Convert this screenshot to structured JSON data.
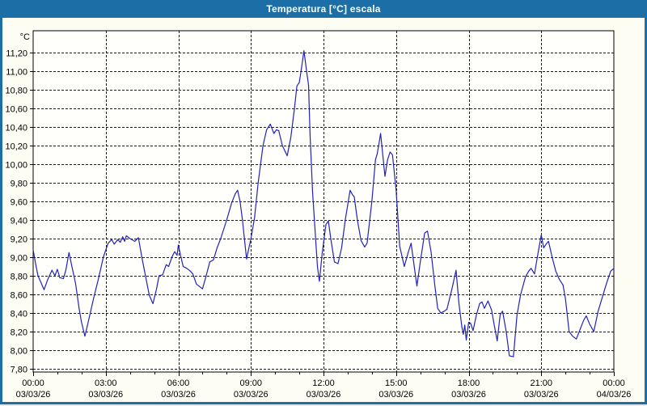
{
  "window": {
    "title": "Temperatura [°C] escala"
  },
  "colors": {
    "titlebar": "#1c6fa6",
    "window_border": "#1c6fa6",
    "background": "#fdfdf4",
    "plot_background": "#fffffc",
    "line": "#2222bb",
    "grid": "#1a1a1a",
    "frame": "#000000",
    "text": "#000000"
  },
  "chart_data": {
    "type": "line",
    "title": "Temperatura [°C] escala",
    "ylabel": "°C",
    "unit_label": "°C",
    "ylim": [
      7.8,
      11.2
    ],
    "ytick_step": 0.2,
    "ytick_labels": [
      "11,20",
      "11,00",
      "10,80",
      "10,60",
      "10,40",
      "10,20",
      "10,00",
      "9,80",
      "9,60",
      "9,40",
      "9,20",
      "9,00",
      "8,80",
      "8,60",
      "8,40",
      "8,20",
      "8,00",
      "7,80"
    ],
    "x_hours_range": [
      0,
      24
    ],
    "x_minor_tick_hours": 1,
    "grid": true,
    "legend": "none",
    "xtick_labels": [
      {
        "hour": 0,
        "time": "00:00",
        "date": "03/03/26"
      },
      {
        "hour": 3,
        "time": "03:00",
        "date": "03/03/26"
      },
      {
        "hour": 6,
        "time": "06:00",
        "date": "03/03/26"
      },
      {
        "hour": 9,
        "time": "09:00",
        "date": "03/03/26"
      },
      {
        "hour": 12,
        "time": "12:00",
        "date": "03/03/26"
      },
      {
        "hour": 15,
        "time": "15:00",
        "date": "03/03/26"
      },
      {
        "hour": 18,
        "time": "18:00",
        "date": "03/03/26"
      },
      {
        "hour": 21,
        "time": "21:00",
        "date": "03/03/26"
      },
      {
        "hour": 24,
        "time": "00:00",
        "date": "04/03/26"
      }
    ],
    "series": [
      {
        "name": "Temperatura",
        "color": "#2222bb",
        "points": [
          [
            0,
            9.08
          ],
          [
            0.1,
            8.93
          ],
          [
            0.2,
            8.8
          ],
          [
            0.3,
            8.74
          ],
          [
            0.45,
            8.65
          ],
          [
            0.6,
            8.76
          ],
          [
            0.78,
            8.86
          ],
          [
            0.9,
            8.8
          ],
          [
            1,
            8.87
          ],
          [
            1.1,
            8.78
          ],
          [
            1.25,
            8.77
          ],
          [
            1.35,
            8.86
          ],
          [
            1.48,
            9.05
          ],
          [
            1.6,
            8.9
          ],
          [
            1.75,
            8.72
          ],
          [
            1.9,
            8.45
          ],
          [
            2,
            8.3
          ],
          [
            2.14,
            8.15
          ],
          [
            2.3,
            8.33
          ],
          [
            2.5,
            8.56
          ],
          [
            2.7,
            8.77
          ],
          [
            2.9,
            9
          ],
          [
            3.1,
            9.15
          ],
          [
            3.25,
            9.19
          ],
          [
            3.35,
            9.14
          ],
          [
            3.5,
            9.19
          ],
          [
            3.6,
            9.16
          ],
          [
            3.7,
            9.22
          ],
          [
            3.78,
            9.17
          ],
          [
            3.85,
            9.23
          ],
          [
            4,
            9.2
          ],
          [
            4.2,
            9.17
          ],
          [
            4.35,
            9.21
          ],
          [
            4.5,
            8.99
          ],
          [
            4.65,
            8.79
          ],
          [
            4.8,
            8.59
          ],
          [
            4.95,
            8.5
          ],
          [
            5.1,
            8.66
          ],
          [
            5.2,
            8.8
          ],
          [
            5.35,
            8.81
          ],
          [
            5.5,
            8.92
          ],
          [
            5.6,
            8.9
          ],
          [
            5.75,
            9.01
          ],
          [
            5.85,
            9.06
          ],
          [
            5.95,
            9.02
          ],
          [
            6,
            9.13
          ],
          [
            6.1,
            9.01
          ],
          [
            6.2,
            8.9
          ],
          [
            6.35,
            8.88
          ],
          [
            6.5,
            8.85
          ],
          [
            6.6,
            8.82
          ],
          [
            6.75,
            8.71
          ],
          [
            6.9,
            8.68
          ],
          [
            7,
            8.66
          ],
          [
            7.15,
            8.8
          ],
          [
            7.3,
            8.95
          ],
          [
            7.45,
            8.97
          ],
          [
            7.6,
            9.1
          ],
          [
            7.75,
            9.2
          ],
          [
            8,
            9.4
          ],
          [
            8.2,
            9.58
          ],
          [
            8.35,
            9.68
          ],
          [
            8.45,
            9.72
          ],
          [
            8.55,
            9.6
          ],
          [
            8.65,
            9.4
          ],
          [
            8.75,
            9.15
          ],
          [
            8.82,
            8.98
          ],
          [
            8.9,
            9.08
          ],
          [
            9,
            9.2
          ],
          [
            9.15,
            9.42
          ],
          [
            9.3,
            9.8
          ],
          [
            9.5,
            10.2
          ],
          [
            9.65,
            10.37
          ],
          [
            9.8,
            10.43
          ],
          [
            9.95,
            10.33
          ],
          [
            10.05,
            10.37
          ],
          [
            10.15,
            10.36
          ],
          [
            10.3,
            10.2
          ],
          [
            10.5,
            10.09
          ],
          [
            10.65,
            10.29
          ],
          [
            10.8,
            10.6
          ],
          [
            10.9,
            10.84
          ],
          [
            11,
            10.88
          ],
          [
            11.1,
            11.05
          ],
          [
            11.19,
            11.22
          ],
          [
            11.3,
            11
          ],
          [
            11.38,
            10.85
          ],
          [
            11.45,
            10.29
          ],
          [
            11.55,
            9.7
          ],
          [
            11.65,
            9.3
          ],
          [
            11.75,
            8.9
          ],
          [
            11.83,
            8.74
          ],
          [
            11.95,
            9.05
          ],
          [
            12.1,
            9.35
          ],
          [
            12.2,
            9.39
          ],
          [
            12.3,
            9.2
          ],
          [
            12.45,
            8.95
          ],
          [
            12.6,
            8.93
          ],
          [
            12.75,
            9.1
          ],
          [
            12.9,
            9.4
          ],
          [
            13.1,
            9.72
          ],
          [
            13.2,
            9.67
          ],
          [
            13.27,
            9.65
          ],
          [
            13.4,
            9.4
          ],
          [
            13.55,
            9.18
          ],
          [
            13.7,
            9.11
          ],
          [
            13.8,
            9.15
          ],
          [
            14,
            9.6
          ],
          [
            14.15,
            10.05
          ],
          [
            14.22,
            10.11
          ],
          [
            14.28,
            10.2
          ],
          [
            14.36,
            10.33
          ],
          [
            14.45,
            10.1
          ],
          [
            14.54,
            9.87
          ],
          [
            14.65,
            10.05
          ],
          [
            14.75,
            10.13
          ],
          [
            14.85,
            10.1
          ],
          [
            15,
            9.72
          ],
          [
            15.15,
            9.12
          ],
          [
            15.34,
            8.9
          ],
          [
            15.5,
            9.05
          ],
          [
            15.62,
            9.15
          ],
          [
            15.75,
            8.9
          ],
          [
            15.86,
            8.69
          ],
          [
            16,
            8.95
          ],
          [
            16.18,
            9.26
          ],
          [
            16.3,
            9.28
          ],
          [
            16.45,
            9.05
          ],
          [
            16.6,
            8.7
          ],
          [
            16.72,
            8.45
          ],
          [
            16.85,
            8.4
          ],
          [
            17,
            8.42
          ],
          [
            17.1,
            8.44
          ],
          [
            17.3,
            8.65
          ],
          [
            17.48,
            8.86
          ],
          [
            17.6,
            8.5
          ],
          [
            17.72,
            8.25
          ],
          [
            17.78,
            8.17
          ],
          [
            17.84,
            8.27
          ],
          [
            17.9,
            8.11
          ],
          [
            18,
            8.3
          ],
          [
            18.08,
            8.29
          ],
          [
            18.18,
            8.21
          ],
          [
            18.32,
            8.38
          ],
          [
            18.45,
            8.5
          ],
          [
            18.55,
            8.52
          ],
          [
            18.65,
            8.45
          ],
          [
            18.8,
            8.53
          ],
          [
            18.95,
            8.43
          ],
          [
            19.05,
            8.28
          ],
          [
            19.18,
            8.1
          ],
          [
            19.3,
            8.38
          ],
          [
            19.4,
            8.42
          ],
          [
            19.55,
            8.2
          ],
          [
            19.68,
            7.94
          ],
          [
            19.85,
            7.93
          ],
          [
            20,
            8.38
          ],
          [
            20.15,
            8.6
          ],
          [
            20.35,
            8.79
          ],
          [
            20.48,
            8.85
          ],
          [
            20.58,
            8.88
          ],
          [
            20.72,
            8.82
          ],
          [
            20.85,
            9.02
          ],
          [
            21,
            9.24
          ],
          [
            21.1,
            9.1
          ],
          [
            21.2,
            9.14
          ],
          [
            21.3,
            9.17
          ],
          [
            21.45,
            9
          ],
          [
            21.6,
            8.85
          ],
          [
            21.75,
            8.76
          ],
          [
            21.9,
            8.7
          ],
          [
            22,
            8.55
          ],
          [
            22.15,
            8.2
          ],
          [
            22.3,
            8.15
          ],
          [
            22.45,
            8.12
          ],
          [
            22.6,
            8.22
          ],
          [
            22.75,
            8.32
          ],
          [
            22.86,
            8.37
          ],
          [
            23,
            8.28
          ],
          [
            23.17,
            8.2
          ],
          [
            23.35,
            8.42
          ],
          [
            23.55,
            8.59
          ],
          [
            23.7,
            8.72
          ],
          [
            23.87,
            8.85
          ],
          [
            24,
            8.88
          ]
        ]
      }
    ]
  }
}
